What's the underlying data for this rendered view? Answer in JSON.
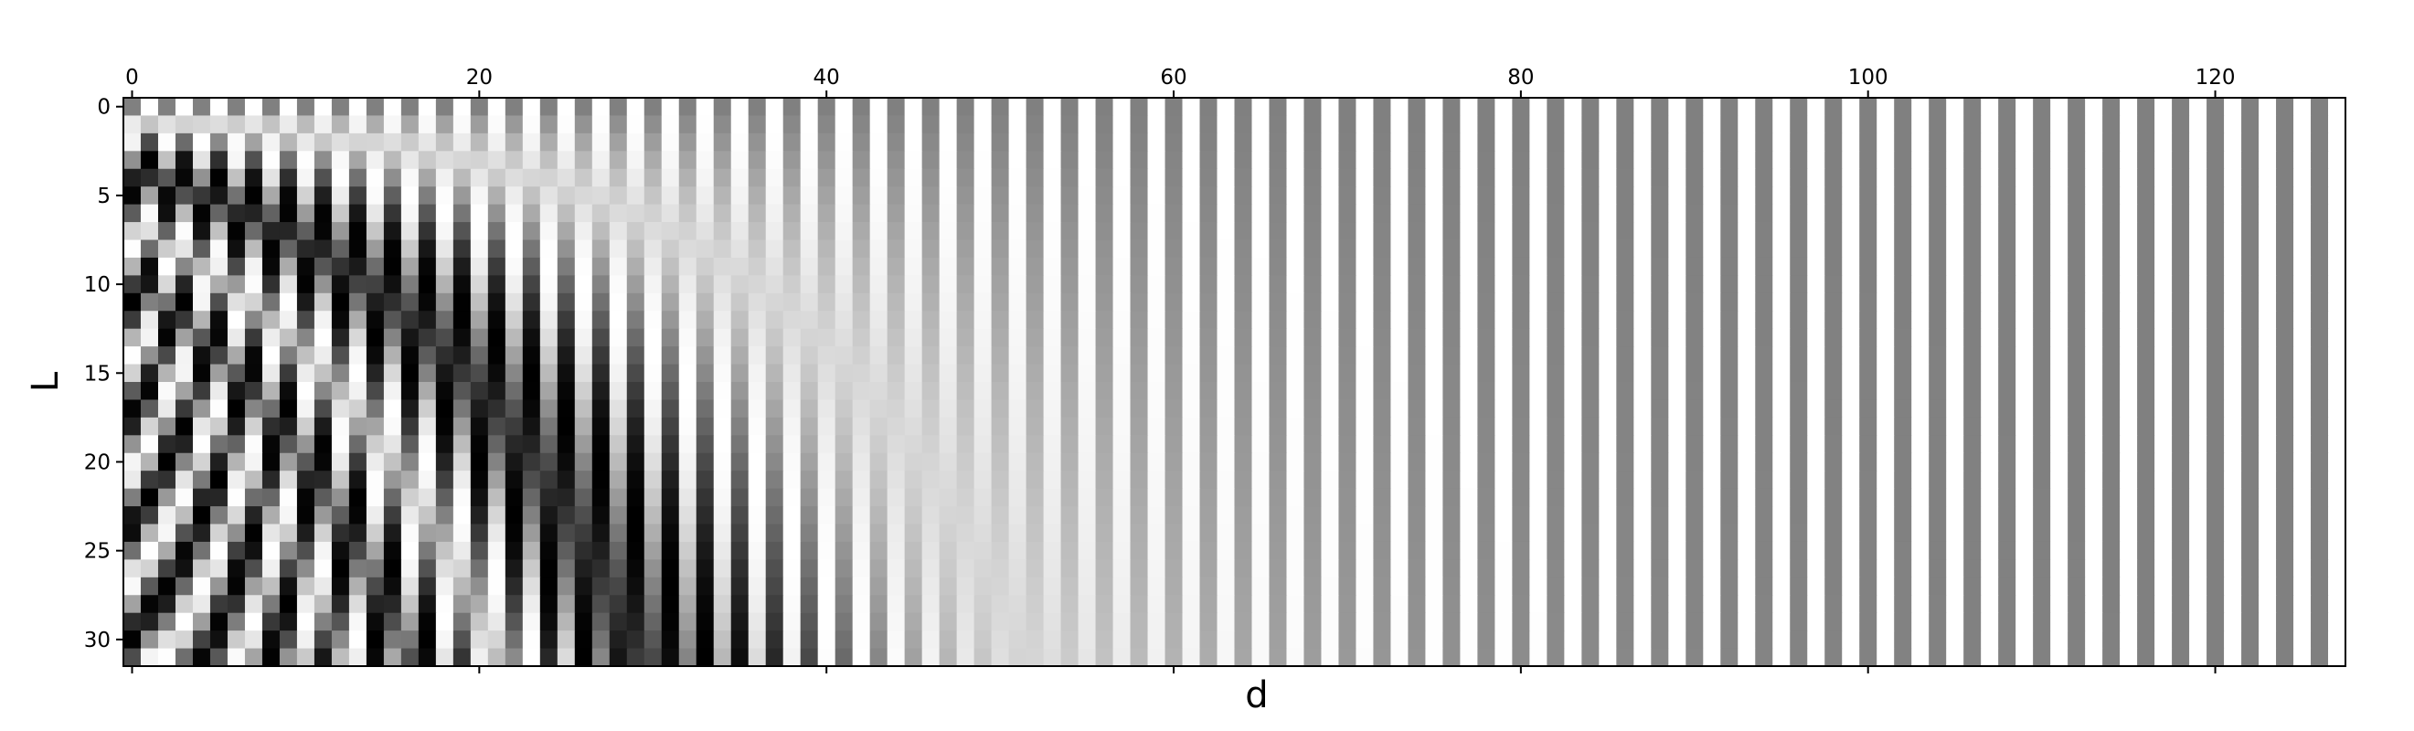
{
  "chart_data": {
    "type": "heatmap",
    "title": "",
    "xlabel": "d",
    "ylabel": "L",
    "x_range": [
      0,
      127
    ],
    "y_range": [
      0,
      31
    ],
    "x_ticks": [
      0,
      20,
      40,
      60,
      80,
      100,
      120
    ],
    "y_ticks": [
      0,
      5,
      10,
      15,
      20,
      25,
      30
    ],
    "x_tick_position": "top-and-bottom",
    "y_axis_inverted": true,
    "colormap": "gray",
    "value_range": [
      -1,
      1
    ],
    "values": "positional encoding: PE(L, d) = sin(L / 10000^(2*floor(d/2)/128)) for even d, cos(L / 10000^(2*floor(d/2)/128)) for odd d; 32 rows (L = 0..31) x 128 columns (d = 0..127)",
    "grid": false,
    "legend": "none"
  },
  "colors": {
    "background": "#ffffff",
    "frame": "#000000",
    "low": "#000000",
    "high": "#ffffff"
  }
}
